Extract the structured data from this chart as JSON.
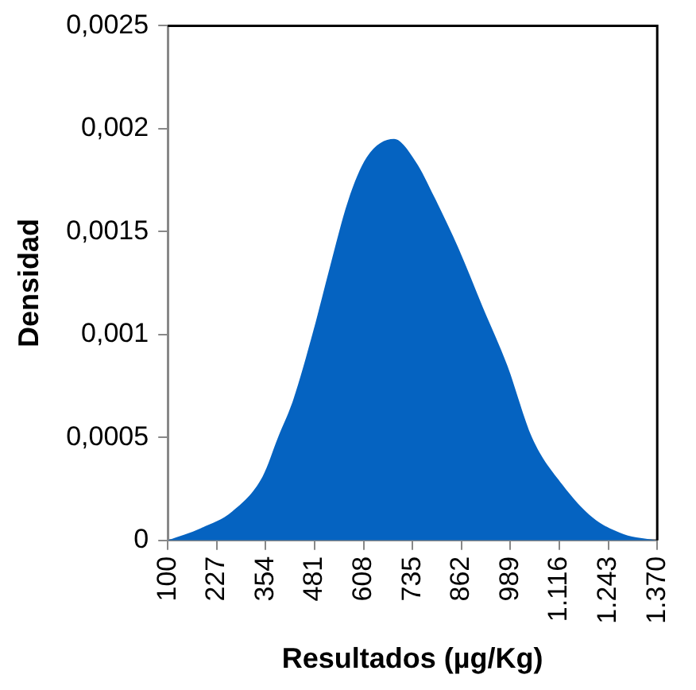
{
  "chart_data": {
    "type": "area",
    "xlabel": "Resultados (µg/Kg)",
    "ylabel": "Densidad",
    "x": [
      100,
      187,
      267,
      346,
      386,
      425,
      478,
      521,
      568,
      616,
      687,
      743,
      791,
      854,
      918,
      981,
      1045,
      1124,
      1203,
      1283,
      1370
    ],
    "series": [
      {
        "color": "#0563c1",
        "values": [
          0,
          6e-05,
          0.00014,
          0.00031,
          0.0005,
          0.00068,
          0.00102,
          0.00133,
          0.00165,
          0.00186,
          0.00195,
          0.00184,
          0.00167,
          0.00142,
          0.00113,
          0.00085,
          0.0005,
          0.00027,
          0.00011,
          3e-05,
          0
        ]
      }
    ],
    "xlim": [
      100,
      1370
    ],
    "xticks": [
      100,
      227,
      354,
      481,
      608,
      735,
      862,
      989,
      {
        "value": 1116,
        "label": "1.116"
      },
      {
        "value": 1243,
        "label": "1.243"
      },
      {
        "value": 1370,
        "label": "1.370"
      }
    ],
    "ylim": [
      0,
      0.0025
    ],
    "yticks": [
      0,
      {
        "value": 0.0005,
        "label": "0,0005"
      },
      {
        "value": 0.001,
        "label": "0,001"
      },
      {
        "value": 0.0015,
        "label": "0,0015"
      },
      {
        "value": 0.002,
        "label": "0,002"
      },
      {
        "value": 0.0025,
        "label": "0,0025"
      }
    ],
    "grid": false,
    "legend": false,
    "marker": "none"
  }
}
